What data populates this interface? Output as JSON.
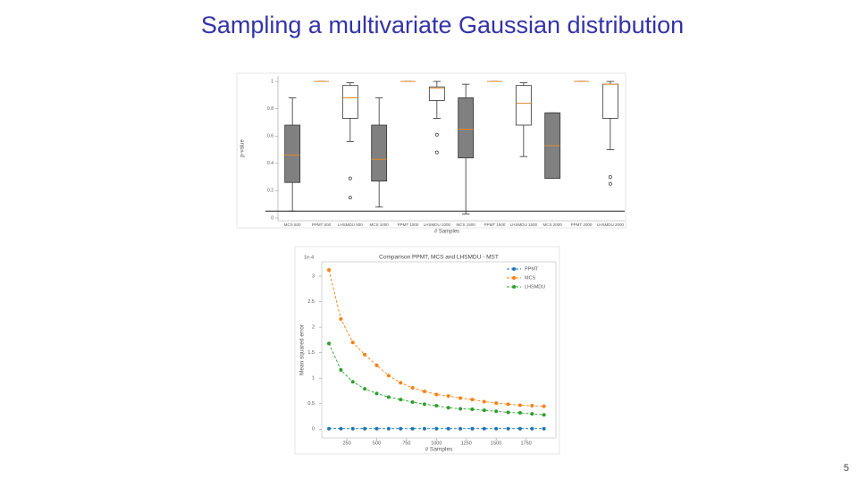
{
  "slide": {
    "title": "Sampling a multivariate Gaussian distribution",
    "page_number": "5"
  },
  "chart_data": [
    {
      "type": "box",
      "ylabel": "p-value",
      "xlabel": "# Samples",
      "categories": [
        "MCS 500",
        "PPMT 500",
        "LHSMDU 500",
        "MCS 1000",
        "PPMT 1000",
        "LHSMDU 1000",
        "MCS 1500",
        "PPMT 1500",
        "LHSMDU 1500",
        "MCS 2000",
        "PPMT 2000",
        "LHSMDU 2000"
      ],
      "colors": [
        "#808080",
        "#ffffff",
        "#ffffff",
        "#808080",
        "#ffffff",
        "#ffffff",
        "#808080",
        "#ffffff",
        "#ffffff",
        "#808080",
        "#ffffff",
        "#ffffff"
      ],
      "median_color": "#e08a2c",
      "boxes": [
        {
          "min": 0.05,
          "q1": 0.26,
          "median": 0.46,
          "q3": 0.68,
          "max": 0.88,
          "outliers": []
        },
        {
          "min": 1.0,
          "q1": 1.0,
          "median": 1.0,
          "q3": 1.0,
          "max": 1.0,
          "outliers": []
        },
        {
          "min": 0.56,
          "q1": 0.73,
          "median": 0.88,
          "q3": 0.97,
          "max": 0.99,
          "outliers": [
            0.29,
            0.15
          ]
        },
        {
          "min": 0.08,
          "q1": 0.27,
          "median": 0.43,
          "q3": 0.68,
          "max": 0.88,
          "outliers": []
        },
        {
          "min": 1.0,
          "q1": 1.0,
          "median": 1.0,
          "q3": 1.0,
          "max": 1.0,
          "outliers": []
        },
        {
          "min": 0.73,
          "q1": 0.86,
          "median": 0.95,
          "q3": 0.96,
          "max": 1.0,
          "outliers": [
            0.61,
            0.48
          ]
        },
        {
          "min": 0.03,
          "q1": 0.44,
          "median": 0.65,
          "q3": 0.88,
          "max": 0.98,
          "outliers": []
        },
        {
          "min": 1.0,
          "q1": 1.0,
          "median": 1.0,
          "q3": 1.0,
          "max": 1.0,
          "outliers": []
        },
        {
          "min": 0.45,
          "q1": 0.68,
          "median": 0.84,
          "q3": 0.97,
          "max": 0.99,
          "outliers": []
        },
        {
          "min": 0.29,
          "q1": 0.29,
          "median": 0.53,
          "q3": 0.77,
          "max": 0.77,
          "outliers": []
        },
        {
          "min": 1.0,
          "q1": 1.0,
          "median": 1.0,
          "q3": 1.0,
          "max": 1.0,
          "outliers": []
        },
        {
          "min": 0.5,
          "q1": 0.73,
          "median": 0.98,
          "q3": 0.98,
          "max": 1.0,
          "outliers": [
            0.3,
            0.25
          ]
        }
      ],
      "hline": 0.05,
      "ylim": [
        -0.02,
        1.04
      ],
      "yticks": [
        0.0,
        0.2,
        0.4,
        0.6,
        0.8,
        1.0
      ]
    },
    {
      "type": "line",
      "title": "Comparison PPMT, MCS and LHSMDU - MST",
      "xlabel": "# Samples",
      "ylabel": "Mean squared error",
      "axis_offset": "1e-4",
      "x": [
        100,
        200,
        300,
        400,
        500,
        600,
        700,
        800,
        900,
        1000,
        1100,
        1200,
        1300,
        1400,
        1500,
        1600,
        1700,
        1800,
        1900
      ],
      "series": [
        {
          "name": "PPMT",
          "color": "#1f77b4",
          "values": [
            0.01,
            0.01,
            0.01,
            0.01,
            0.01,
            0.01,
            0.01,
            0.01,
            0.01,
            0.01,
            0.01,
            0.01,
            0.01,
            0.01,
            0.01,
            0.01,
            0.01,
            0.01,
            0.01
          ]
        },
        {
          "name": "MCS",
          "color": "#ff7f0e",
          "values": [
            3.12,
            2.16,
            1.7,
            1.46,
            1.25,
            1.05,
            0.91,
            0.81,
            0.74,
            0.68,
            0.65,
            0.61,
            0.58,
            0.54,
            0.51,
            0.49,
            0.47,
            0.46,
            0.45
          ]
        },
        {
          "name": "LHSMDU",
          "color": "#2ca02c",
          "values": [
            1.68,
            1.16,
            0.93,
            0.79,
            0.7,
            0.63,
            0.58,
            0.53,
            0.49,
            0.46,
            0.42,
            0.4,
            0.39,
            0.37,
            0.35,
            0.33,
            0.32,
            0.3,
            0.28
          ]
        }
      ],
      "legend": "upper right",
      "xlim": [
        40,
        2000
      ],
      "xticks": [
        250,
        500,
        750,
        1000,
        1250,
        1500,
        1750
      ],
      "ylim": [
        -0.17,
        3.28
      ],
      "yticks": [
        0.0,
        0.5,
        1.0,
        1.5,
        2.0,
        2.5,
        3.0
      ]
    }
  ]
}
